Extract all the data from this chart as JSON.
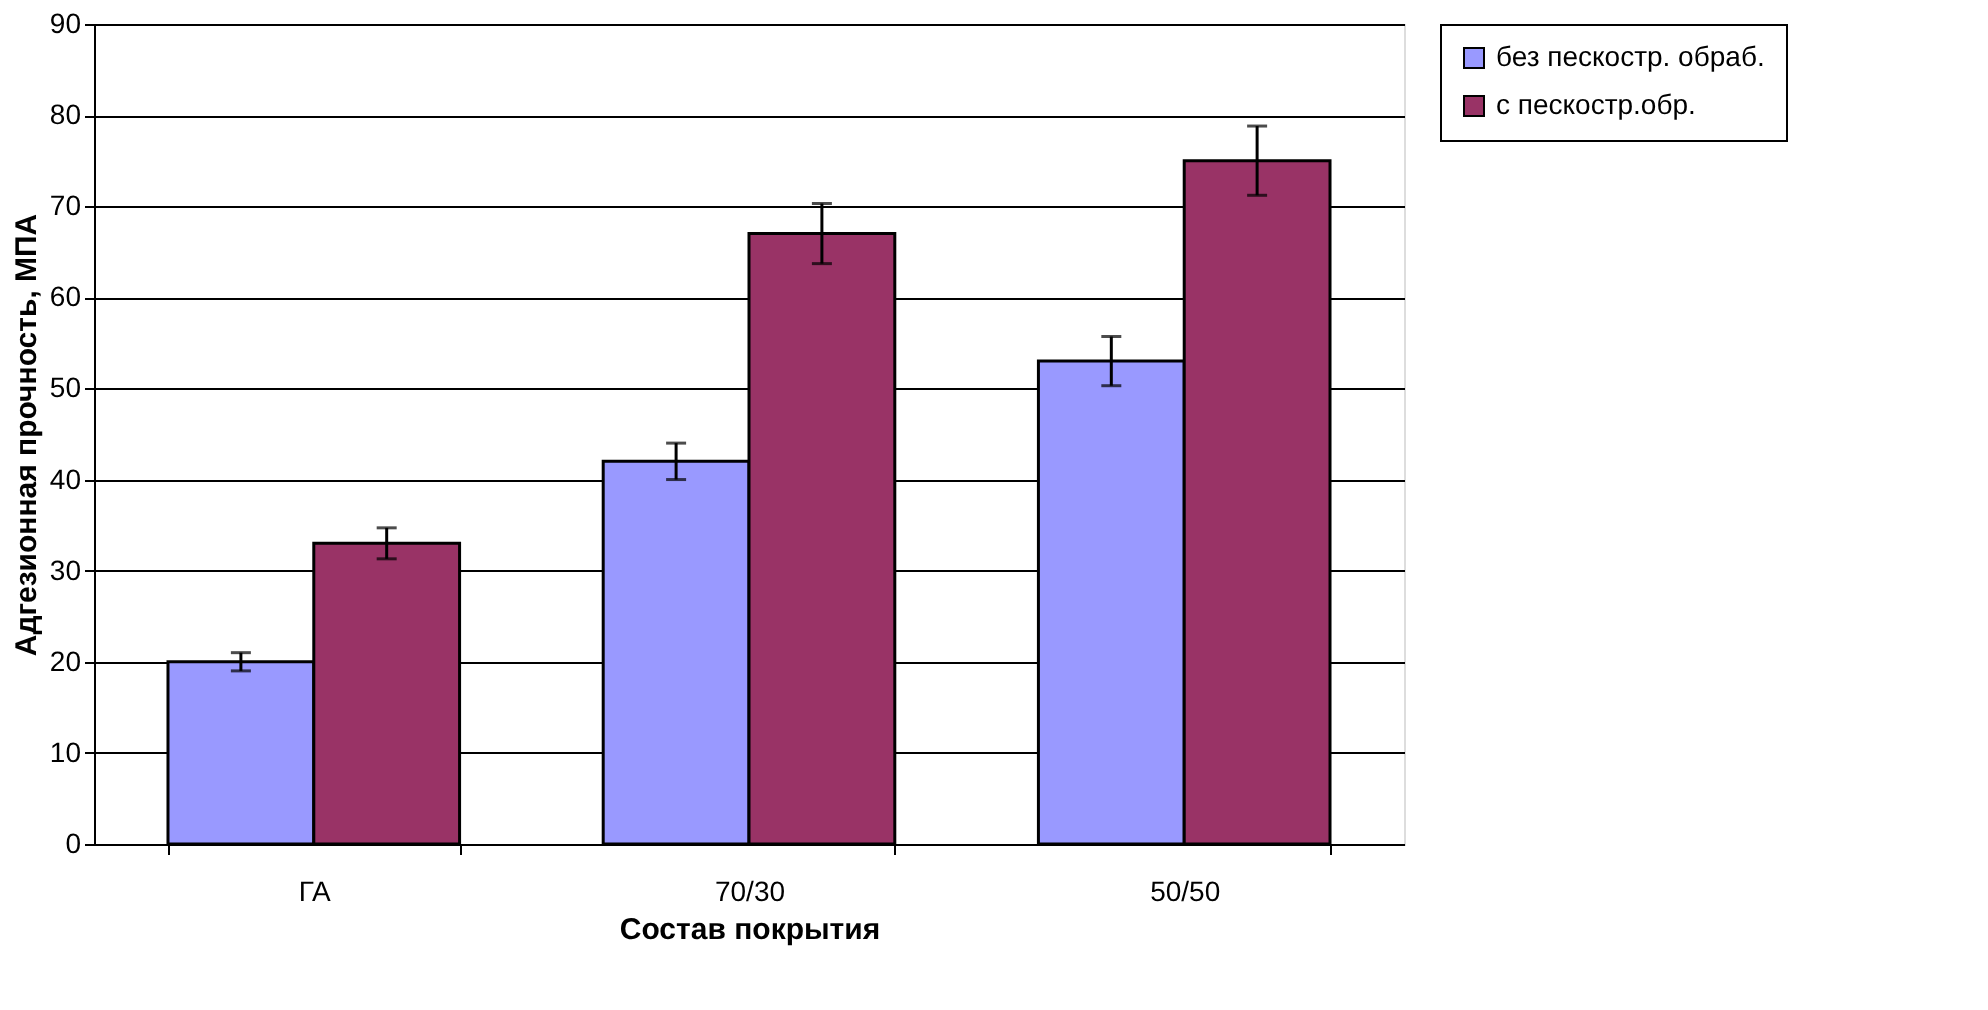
{
  "chart_data": {
    "type": "bar",
    "xlabel": "Состав покрытия",
    "ylabel": "Адгезионная прочность, МПА",
    "categories": [
      "ГА",
      "70/30",
      "50/50"
    ],
    "series": [
      {
        "name": "без пескостр. обраб.",
        "color": "#9999ff",
        "values": [
          20,
          42,
          53
        ],
        "errors": [
          1,
          2,
          2.7
        ]
      },
      {
        "name": "с пескостр.обр.",
        "color": "#993366",
        "values": [
          33,
          67,
          75
        ],
        "errors": [
          1.7,
          3.3,
          3.8
        ]
      }
    ],
    "ylim": [
      0,
      90
    ],
    "yticks": [
      0,
      10,
      20,
      30,
      40,
      50,
      60,
      70,
      80,
      90
    ],
    "grid": "y",
    "legend": "right"
  }
}
